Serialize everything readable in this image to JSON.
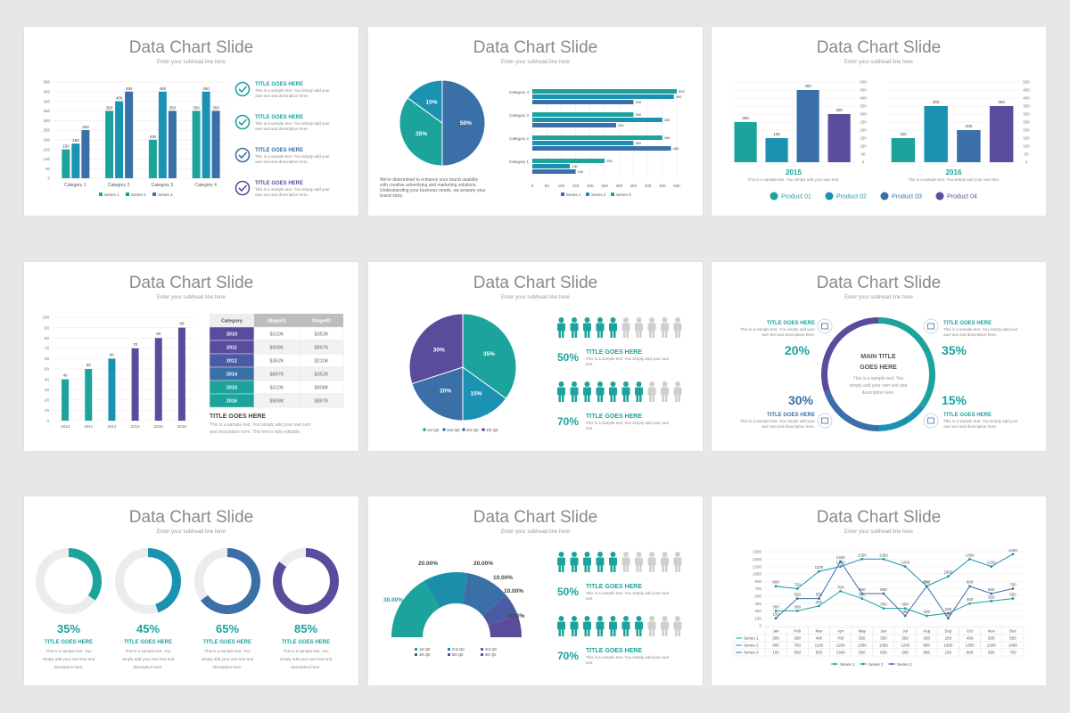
{
  "colors": {
    "teal": "#1ba39c",
    "cyan": "#1b92b2",
    "blue": "#3a6fa8",
    "purple": "#5b4b9c",
    "grey": "#cfcfcf"
  },
  "slides": [
    {
      "title": "Data Chart Slide",
      "subtitle": "Enter your subhead line here"
    },
    {
      "title": "Data Chart Slide",
      "subtitle": "Enter your subhead line here"
    },
    {
      "title": "Data Chart Slide",
      "subtitle": "Enter your subhead line here"
    },
    {
      "title": "Data Chart Slide",
      "subtitle": "Enter your subhead line here"
    },
    {
      "title": "Data Chart Slide",
      "subtitle": "Enter your subhead line here"
    },
    {
      "title": "Data Chart Slide",
      "subtitle": "Enter your subhead line here"
    },
    {
      "title": "Data Chart Slide",
      "subtitle": "Enter your subhead line here"
    },
    {
      "title": "Data Chart Slide",
      "subtitle": "Enter your subhead line here"
    },
    {
      "title": "Data Chart Slide",
      "subtitle": "Enter your subhead line here"
    }
  ],
  "chart_data": [
    {
      "type": "bar",
      "slide": 1,
      "categories": [
        "Category 1",
        "Category 2",
        "Category 3",
        "Category 4"
      ],
      "series": [
        {
          "name": "Series 1",
          "values": [
            150,
            350,
            200,
            350
          ]
        },
        {
          "name": "Series 2",
          "values": [
            180,
            400,
            450,
            450
          ]
        },
        {
          "name": "Series 3",
          "values": [
            250,
            450,
            350,
            350
          ]
        }
      ],
      "data_labels": [
        [
          "150",
          "180",
          "250"
        ],
        [
          "350",
          "400",
          "450"
        ],
        [
          "200",
          "450",
          "350"
        ],
        [
          "350",
          "450",
          "350"
        ]
      ],
      "yticks": [
        "0",
        "50",
        "100",
        "150",
        "200",
        "250",
        "300",
        "350",
        "400",
        "450",
        "500"
      ],
      "ylim": [
        0,
        500
      ],
      "checklist": [
        {
          "title": "TITLE GOES HERE",
          "text": "This is a sample text. You simply add your own text and description here."
        },
        {
          "title": "TITLE GOES HERE",
          "text": "This is a sample text. You simply add your own text and description here."
        },
        {
          "title": "TITLE GOES HERE",
          "text": "This is a sample text. You simply add your own text and description here."
        },
        {
          "title": "TITLE GOES HERE",
          "text": "This is a sample text. You simply add your own text and description here."
        }
      ]
    },
    {
      "type": "pie",
      "slide": 2,
      "values": [
        50,
        35,
        15
      ],
      "labels": [
        "50%",
        "35%",
        "15%"
      ],
      "caption": "We're determined to enhance your brand usability with creative advertising and marketing solutions. Understanding your business needs, we prepare your brand story."
    },
    {
      "type": "bar",
      "slide": 2,
      "orientation": "horizontal",
      "categories": [
        "Category 4",
        "Category 3",
        "Category 2",
        "Category 1"
      ],
      "series": [
        {
          "name": "Series 3",
          "values": [
            500,
            350,
            450,
            250
          ]
        },
        {
          "name": "Series 2",
          "values": [
            490,
            450,
            350,
            130
          ]
        },
        {
          "name": "Series 1",
          "values": [
            350,
            290,
            480,
            150
          ]
        }
      ],
      "data_labels": [
        [
          "500",
          "490",
          "350"
        ],
        [
          "350",
          "450",
          "290"
        ],
        [
          "450",
          "350",
          "480"
        ],
        [
          "250",
          "130",
          "150"
        ]
      ],
      "xticks": [
        "0",
        "50",
        "100",
        "150",
        "200",
        "250",
        "300",
        "350",
        "400",
        "450",
        "500"
      ],
      "xlim": [
        0,
        500
      ]
    },
    {
      "type": "bar",
      "slide": 3,
      "groups": [
        {
          "label": "2015",
          "categories": [
            "Product 01",
            "Product 02",
            "Product 03",
            "Product 04"
          ],
          "values": [
            250,
            150,
            450,
            300
          ]
        },
        {
          "label": "2016",
          "categories": [
            "Product 01",
            "Product 02",
            "Product 03",
            "Product 04"
          ],
          "values": [
            150,
            350,
            200,
            350
          ]
        }
      ],
      "yticks": [
        "0",
        "50",
        "100",
        "150",
        "200",
        "250",
        "300",
        "350",
        "400",
        "450",
        "500"
      ],
      "ylim": [
        0,
        500
      ],
      "group_text": "This is a sample text. You simply add your own text.",
      "legend": [
        "Product 01",
        "Product 02",
        "Product 03",
        "Product 04"
      ]
    },
    {
      "type": "bar",
      "slide": 4,
      "categories": [
        "2010",
        "2011",
        "2012",
        "2014",
        "2015",
        "2016"
      ],
      "values": [
        40,
        50,
        60,
        70,
        80,
        90
      ],
      "yticks": [
        "0",
        "10",
        "20",
        "30",
        "40",
        "50",
        "60",
        "70",
        "80",
        "90",
        "100"
      ],
      "ylim": [
        0,
        100
      ],
      "table": {
        "headers": [
          "Category",
          "Stage01",
          "Stage02"
        ],
        "rows": [
          [
            "2010",
            "$310K",
            "$352K"
          ],
          [
            "2011",
            "$908K",
            "$897K"
          ],
          [
            "2012",
            "$352K",
            "$210K"
          ],
          [
            "2014",
            "$897K",
            "$352K"
          ],
          [
            "2015",
            "$310K",
            "$908K"
          ],
          [
            "2016",
            "$908K",
            "$897K"
          ]
        ]
      },
      "note_title": "TITLE GOES HERE",
      "note_text": "This is a sample text. You simply add your own text and description here. This text is fully editable."
    },
    {
      "type": "pie",
      "slide": 5,
      "values": [
        35,
        15,
        20,
        30
      ],
      "labels": [
        "35%",
        "15%",
        "20%",
        "30%"
      ],
      "legend": [
        "1st Qtr",
        "2nd Qtr",
        "3rd Qtr",
        "4th Qtr"
      ],
      "people": [
        {
          "percent": "50%",
          "title": "TITLE GOES HERE",
          "text": "This is a sample text. You simply add your own text.",
          "filled": 5,
          "total": 10
        },
        {
          "percent": "70%",
          "title": "TITLE GOES HERE",
          "text": "This is a sample text. You simply add your own text.",
          "filled": 7,
          "total": 10
        }
      ]
    },
    {
      "type": "pie",
      "slide": 6,
      "donut": true,
      "values": [
        35,
        15,
        20,
        30
      ],
      "center_title": "MAIN TITLE GOES HERE",
      "center_text": "This is a sample text. You simply add your own text and description here.",
      "items": [
        {
          "percent": "20%",
          "title": "TITLE GOES HERE",
          "text": "This is a sample text. You simply add your own text and description here."
        },
        {
          "percent": "35%",
          "title": "TITLE GOES HERE",
          "text": "This is a sample text. You simply add your own text and description here."
        },
        {
          "percent": "30%",
          "title": "TITLE GOES HERE",
          "text": "This is a sample text. You simply add your own text and description here."
        },
        {
          "percent": "15%",
          "title": "TITLE GOES HERE",
          "text": "This is a sample text. You simply add your own text and description here."
        }
      ]
    },
    {
      "type": "pie",
      "slide": 7,
      "donut": true,
      "values": [
        35,
        45,
        65,
        85
      ],
      "labels": [
        "35%",
        "45%",
        "65%",
        "85%"
      ],
      "title": "TITLE GOES HERE",
      "text": "This is a sample text. You simply add your own text and description here."
    },
    {
      "type": "pie",
      "slide": 8,
      "donut": true,
      "half": true,
      "values": [
        30,
        20,
        20,
        10,
        10,
        0
      ],
      "labels": [
        "30.00%",
        "20.00%",
        "20.00%",
        "10.00%",
        "10.00%",
        "0.00%"
      ],
      "legend": [
        "1st Qtr",
        "2nd Qtr",
        "3rd Qtr",
        "4th Qtr",
        "5th Qtr",
        "6th Qtr"
      ],
      "people": [
        {
          "percent": "50%",
          "title": "TITLE GOES HERE",
          "text": "This is a sample text. You simply add your own text.",
          "filled": 5,
          "total": 10
        },
        {
          "percent": "70%",
          "title": "TITLE GOES HERE",
          "text": "This is a sample text. You simply add your own text.",
          "filled": 7,
          "total": 10
        }
      ]
    },
    {
      "type": "line",
      "slide": 9,
      "categories": [
        "Jan",
        "Feb",
        "Mar",
        "Apr",
        "May",
        "Jun",
        "Jul",
        "Aug",
        "Sep",
        "Oct",
        "Nov",
        "Dec"
      ],
      "series": [
        {
          "name": "Series 1",
          "values": [
            300,
            300,
            400,
            700,
            550,
            350,
            350,
            200,
            250,
            450,
            500,
            550
          ]
        },
        {
          "name": "Series 2",
          "values": [
            800,
            750,
            1100,
            1200,
            1350,
            1350,
            1200,
            800,
            1000,
            1350,
            1200,
            1450
          ]
        },
        {
          "name": "Series 3",
          "values": [
            150,
            550,
            550,
            1300,
            650,
            650,
            200,
            800,
            150,
            800,
            650,
            750
          ]
        }
      ],
      "table_rows": [
        {
          "name": "Series 1",
          "values": [
            "300",
            "300",
            "400",
            "700",
            "550",
            "350",
            "350",
            "200",
            "250",
            "450",
            "500",
            "550"
          ]
        },
        {
          "name": "Series 2",
          "values": [
            "800",
            "750",
            "1100",
            "1200",
            "1350",
            "1350",
            "1200",
            "800",
            "1000",
            "1350",
            "1200",
            "1450"
          ]
        },
        {
          "name": "Series 3",
          "values": [
            "150",
            "550",
            "550",
            "1300",
            "650",
            "650",
            "200",
            "800",
            "150",
            "800",
            "650",
            "750"
          ]
        }
      ],
      "yticks": [
        "0",
        "150",
        "300",
        "450",
        "600",
        "750",
        "900",
        "1050",
        "1200",
        "1350",
        "1500"
      ],
      "ylim": [
        0,
        1500
      ],
      "legend": [
        "Series 1",
        "Series 2",
        "Series 3"
      ]
    }
  ]
}
